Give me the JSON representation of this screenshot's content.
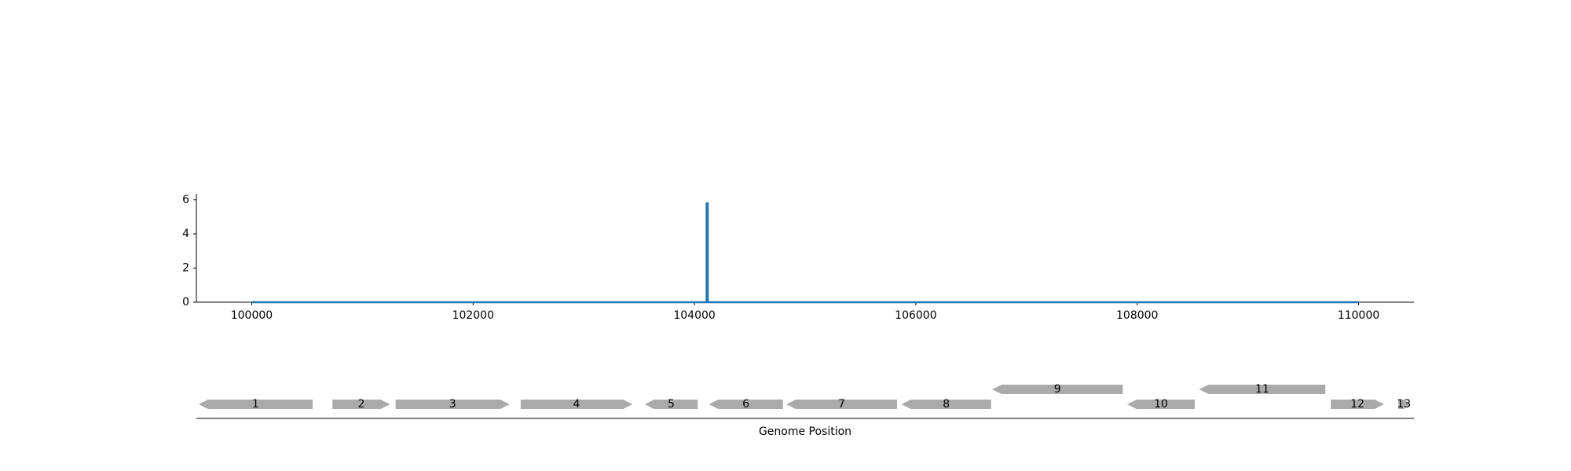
{
  "chart_data": [
    {
      "type": "line",
      "title": "",
      "xlabel": "",
      "ylabel": "",
      "xlim": [
        99500,
        110500
      ],
      "ylim": [
        0,
        6.35
      ],
      "xticks": [
        100000,
        102000,
        104000,
        106000,
        108000,
        110000
      ],
      "xtick_labels": [
        "100000",
        "102000",
        "104000",
        "106000",
        "108000",
        "110000"
      ],
      "yticks": [
        0,
        2,
        4,
        6
      ],
      "ytick_labels": [
        "0",
        "2",
        "4",
        "6"
      ],
      "grid": false,
      "series": [
        {
          "color": "#1f77b4",
          "points": [
            [
              100000,
              0
            ],
            [
              104110,
              0
            ],
            [
              104110,
              5.8
            ],
            [
              104120,
              5.8
            ],
            [
              104120,
              0
            ],
            [
              110000,
              0
            ]
          ]
        }
      ]
    },
    {
      "type": "gene-map",
      "xlabel": "Genome Position",
      "xlim": [
        99500,
        110500
      ],
      "gene_color": "#aaaaaa",
      "genes": [
        {
          "label": "1",
          "start": 99520,
          "end": 100550,
          "strand": "-",
          "track": 0
        },
        {
          "label": "2",
          "start": 100730,
          "end": 101250,
          "strand": "+",
          "track": 0
        },
        {
          "label": "3",
          "start": 101300,
          "end": 102330,
          "strand": "+",
          "track": 0
        },
        {
          "label": "4",
          "start": 102430,
          "end": 103440,
          "strand": "+",
          "track": 0
        },
        {
          "label": "5",
          "start": 103550,
          "end": 104030,
          "strand": "-",
          "track": 0
        },
        {
          "label": "6",
          "start": 104130,
          "end": 104800,
          "strand": "-",
          "track": 0
        },
        {
          "label": "7",
          "start": 104830,
          "end": 105830,
          "strand": "-",
          "track": 0
        },
        {
          "label": "8",
          "start": 105870,
          "end": 106680,
          "strand": "-",
          "track": 0
        },
        {
          "label": "9",
          "start": 106690,
          "end": 107870,
          "strand": "-",
          "track": 1
        },
        {
          "label": "10",
          "start": 107910,
          "end": 108520,
          "strand": "-",
          "track": 0
        },
        {
          "label": "11",
          "start": 108560,
          "end": 109700,
          "strand": "-",
          "track": 1
        },
        {
          "label": "12",
          "start": 109750,
          "end": 110230,
          "strand": "+",
          "track": 0
        },
        {
          "label": "13",
          "start": 110360,
          "end": 110460,
          "strand": "+",
          "track": 0
        }
      ]
    }
  ]
}
